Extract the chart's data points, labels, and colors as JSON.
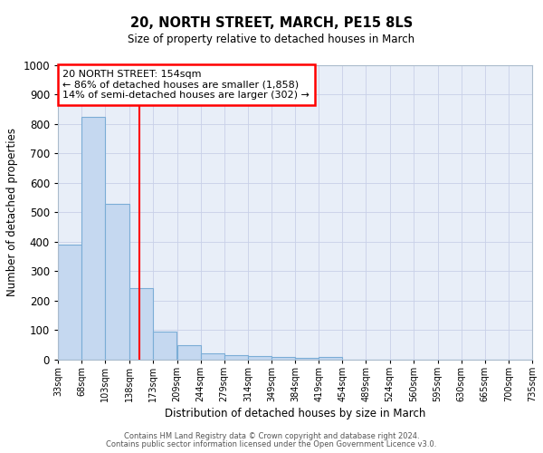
{
  "title1": "20, NORTH STREET, MARCH, PE15 8LS",
  "title2": "Size of property relative to detached houses in March",
  "xlabel": "Distribution of detached houses by size in March",
  "ylabel": "Number of detached properties",
  "bins_left": [
    33,
    68,
    103,
    138,
    173,
    209,
    244,
    279,
    314,
    349,
    384,
    419,
    454,
    489,
    524,
    560,
    595,
    630,
    665,
    700
  ],
  "bin_width": 35,
  "all_ticks": [
    33,
    68,
    103,
    138,
    173,
    209,
    244,
    279,
    314,
    349,
    384,
    419,
    454,
    489,
    524,
    560,
    595,
    630,
    665,
    700,
    735
  ],
  "counts": [
    390,
    825,
    530,
    243,
    95,
    50,
    22,
    15,
    12,
    8,
    5,
    8,
    0,
    0,
    0,
    0,
    0,
    0,
    0,
    0
  ],
  "bar_color": "#c5d8f0",
  "bar_edge_color": "#7badd6",
  "red_line_x": 154,
  "ylim": [
    0,
    1000
  ],
  "yticks": [
    0,
    100,
    200,
    300,
    400,
    500,
    600,
    700,
    800,
    900,
    1000
  ],
  "annotation_line1": "20 NORTH STREET: 154sqm",
  "annotation_line2": "← 86% of detached houses are smaller (1,858)",
  "annotation_line3": "14% of semi-detached houses are larger (302) →",
  "annotation_box_color": "white",
  "annotation_box_edge_color": "red",
  "footer1": "Contains HM Land Registry data © Crown copyright and database right 2024.",
  "footer2": "Contains public sector information licensed under the Open Government Licence v3.0.",
  "axes_bg_color": "#e8eef8",
  "fig_bg_color": "#ffffff",
  "grid_color": "#c8d0e8"
}
